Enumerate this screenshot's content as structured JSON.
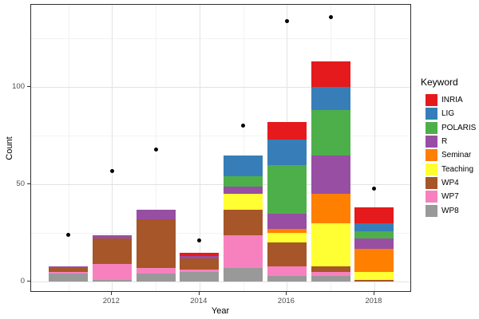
{
  "chart_data": {
    "type": "bar",
    "stacked": true,
    "overlay": "scatter",
    "title": "",
    "xlabel": "Year",
    "ylabel": "Count",
    "legend_title": "Keyword",
    "legend_position": "right",
    "grid": "on",
    "categories": [
      2011,
      2012,
      2013,
      2014,
      2015,
      2016,
      2017,
      2018
    ],
    "series": [
      {
        "name": "INRIA",
        "color": "#E41A1C",
        "values": [
          0,
          0,
          0,
          2,
          0,
          9,
          13,
          8
        ]
      },
      {
        "name": "LIG",
        "color": "#377EB8",
        "values": [
          0,
          0,
          0,
          0,
          11,
          13,
          12,
          4
        ]
      },
      {
        "name": "POLARIS",
        "color": "#4DAF4A",
        "values": [
          0,
          0,
          0,
          0,
          5,
          25,
          23,
          4
        ]
      },
      {
        "name": "R",
        "color": "#984EA3",
        "values": [
          1,
          2,
          5,
          1,
          4,
          8,
          20,
          5
        ]
      },
      {
        "name": "Seminar",
        "color": "#FF7F00",
        "values": [
          0,
          0,
          0,
          0,
          0,
          2,
          15,
          12
        ]
      },
      {
        "name": "Teaching",
        "color": "#FFFF33",
        "values": [
          0,
          0,
          0,
          0,
          8,
          5,
          22,
          4
        ]
      },
      {
        "name": "WP4",
        "color": "#A65628",
        "values": [
          2,
          13,
          25,
          6,
          13,
          12,
          3,
          1
        ]
      },
      {
        "name": "WP7",
        "color": "#F781BF",
        "values": [
          1,
          8,
          3,
          1,
          17,
          5,
          2,
          0
        ]
      },
      {
        "name": "WP8",
        "color": "#999999",
        "values": [
          4,
          1,
          4,
          5,
          7,
          3,
          3,
          0
        ]
      }
    ],
    "stack_order_bottom_to_top": [
      "WP8",
      "WP7",
      "WP4",
      "Teaching",
      "Seminar",
      "R",
      "POLARIS",
      "LIG",
      "INRIA"
    ],
    "bar_totals": [
      8,
      24,
      37,
      15,
      65,
      82,
      113,
      38
    ],
    "points_overlay": {
      "name": "count-points",
      "color": "#000000",
      "values": [
        24,
        57,
        68,
        21,
        80,
        134,
        136,
        48
      ]
    },
    "x_ticks": [
      2012,
      2014,
      2016,
      2018
    ],
    "y_ticks": [
      0,
      50,
      100
    ],
    "x_minor": [
      2011,
      2013,
      2015,
      2017
    ],
    "y_minor": [
      25,
      75,
      125
    ],
    "xlim": [
      2010.15,
      2018.86
    ],
    "ylim": [
      -5.7,
      142.3
    ],
    "colors": {
      "major_grid": "#e3e3e3",
      "minor_grid": "#f2f2f2",
      "panel_border": "#2f2f2f",
      "axis_text": "#4d4d4d",
      "point": "#000000"
    }
  }
}
